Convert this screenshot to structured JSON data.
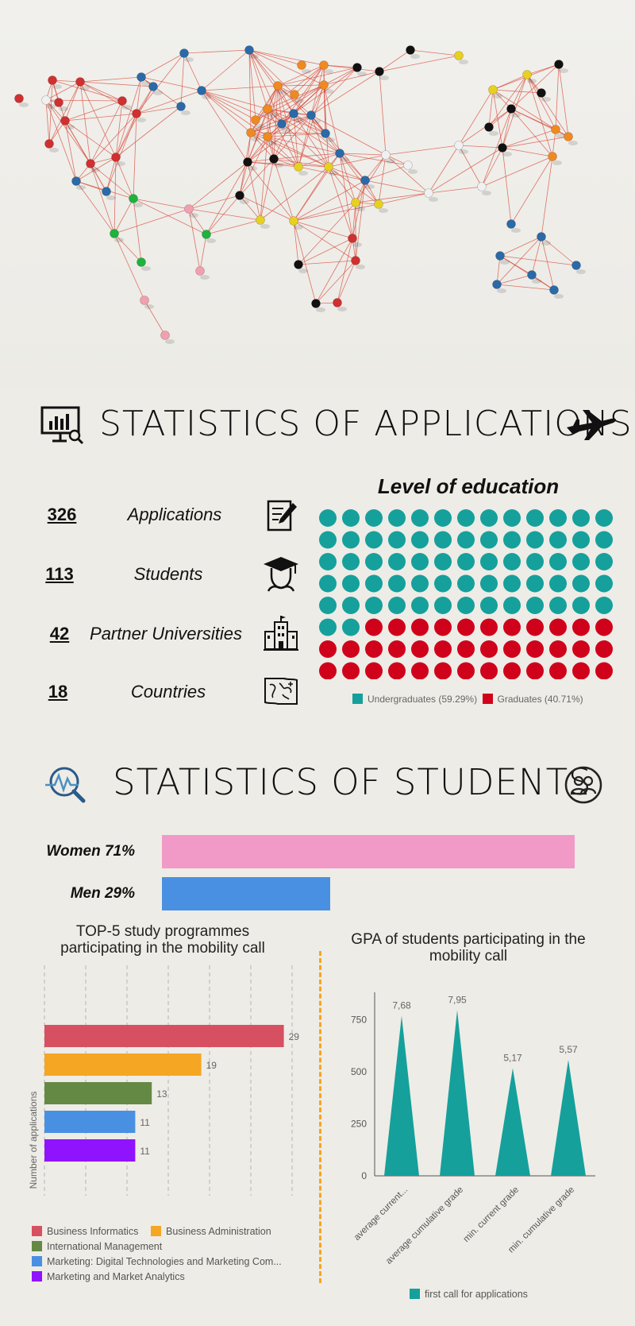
{
  "applications_section": {
    "title": "STATISTICS OF APPLICATIONS",
    "stats": [
      {
        "value": "326",
        "label": "Applications",
        "icon": "application-form-icon"
      },
      {
        "value": "113",
        "label": "Students",
        "icon": "graduate-icon"
      },
      {
        "value": "42",
        "label": "Partner Universities",
        "icon": "university-building-icon"
      },
      {
        "value": "18",
        "label": "Countries",
        "icon": "world-map-icon"
      }
    ]
  },
  "education_chart": {
    "title": "Level of education",
    "legend": [
      {
        "label": "Undergraduates (59.29%)",
        "color": "#15a09c"
      },
      {
        "label": "Graduates (40.71%)",
        "color": "#d0021b"
      }
    ]
  },
  "students_section": {
    "title": "STATISTICS OF STUDENTS",
    "gender": [
      {
        "label": "Women 71%",
        "value": 71,
        "color": "#f19ac8"
      },
      {
        "label": "Men 29%",
        "value": 29,
        "color": "#4a90e2"
      }
    ]
  },
  "chart_data": [
    {
      "type": "waffle",
      "title": "Level of education",
      "total_dots": 113,
      "series": [
        {
          "name": "Undergraduates (59.29%)",
          "count": 67,
          "color": "#15a09c"
        },
        {
          "name": "Graduates (40.71%)",
          "count": 46,
          "color": "#d0021b"
        }
      ]
    },
    {
      "type": "bar",
      "orientation": "horizontal",
      "title": "TOP-5 study programmes participating in the mobility call",
      "ylabel": "Number of applications",
      "xlim": [
        0,
        30
      ],
      "grid": true,
      "legend_position": "bottom",
      "series": [
        {
          "name": "Business Informatics",
          "value": 29,
          "color": "#d65061"
        },
        {
          "name": "Business Administration",
          "value": 19,
          "color": "#f5a623"
        },
        {
          "name": "International Management",
          "value": 13,
          "color": "#648944"
        },
        {
          "name": "Marketing: Digital Technologies and Marketing Com...",
          "value": 11,
          "color": "#4a90e2"
        },
        {
          "name": "Marketing and Market Analytics",
          "value": 11,
          "color": "#9013fe"
        }
      ]
    },
    {
      "type": "bar",
      "shape": "triangle",
      "title": "GPA of students participating in the mobility call",
      "categories": [
        "average current...",
        "average cumulative grade",
        "min. current grade",
        "min. cumulative grade"
      ],
      "values": [
        768,
        795,
        517,
        557
      ],
      "data_labels": [
        "7,68",
        "7,95",
        "5,17",
        "5,57"
      ],
      "yticks": [
        "0",
        "250",
        "500",
        "750"
      ],
      "ylim": [
        0,
        820
      ],
      "legend_position": "bottom",
      "series_name": "first call for applications",
      "color": "#15a09c"
    }
  ]
}
